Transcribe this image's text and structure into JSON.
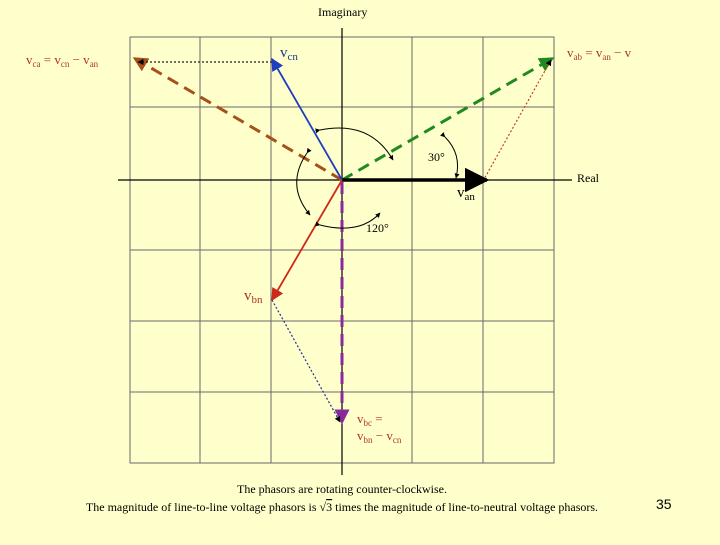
{
  "diagram": {
    "axes": {
      "imaginary": "Imaginary",
      "real": "Real"
    },
    "phasors": {
      "van": {
        "sym": "v",
        "sub": "an"
      },
      "vbn": {
        "sym": "v",
        "sub": "bn"
      },
      "vcn": {
        "sym": "v",
        "sub": "cn"
      },
      "vab": {
        "sym": "v",
        "sub": "ab",
        "eq": " = v",
        "sub2": "an",
        "tail": " − v"
      },
      "vbc": {
        "line1_sym": "v",
        "line1_sub": "bc",
        "line1_eq": " =",
        "line2_sym": "v",
        "line2_sub": "bn",
        "line2_mid": " − v",
        "line2_sub2": "cn"
      },
      "vca": {
        "sym": "v",
        "sub": "ca",
        "eq": " = v",
        "sub2": "cn",
        "mid": " − v",
        "sub3": "an"
      }
    },
    "angles": {
      "a30": "30°",
      "a120": "120°"
    },
    "colors": {
      "grid": "#6a6a6a",
      "axis": "#000000",
      "van": "#000000",
      "vcn": "#1f3fbf",
      "vbn": "#cc2a1a",
      "vab": "#1f8a1f",
      "vbc": "#8a2a9a",
      "vca": "#a8501a",
      "dot_c": "#1a1a1a",
      "dot_b": "#2030a0",
      "dot_a": "#cc3a2a"
    }
  },
  "caption": {
    "line1": "The phasors are rotating counter-clockwise.",
    "line2a": "The magnitude of line-to-line voltage phasors is ",
    "sqrt": "3",
    "line2b": " times the magnitude of line-to-neutral voltage phasors."
  },
  "page_number": "35"
}
